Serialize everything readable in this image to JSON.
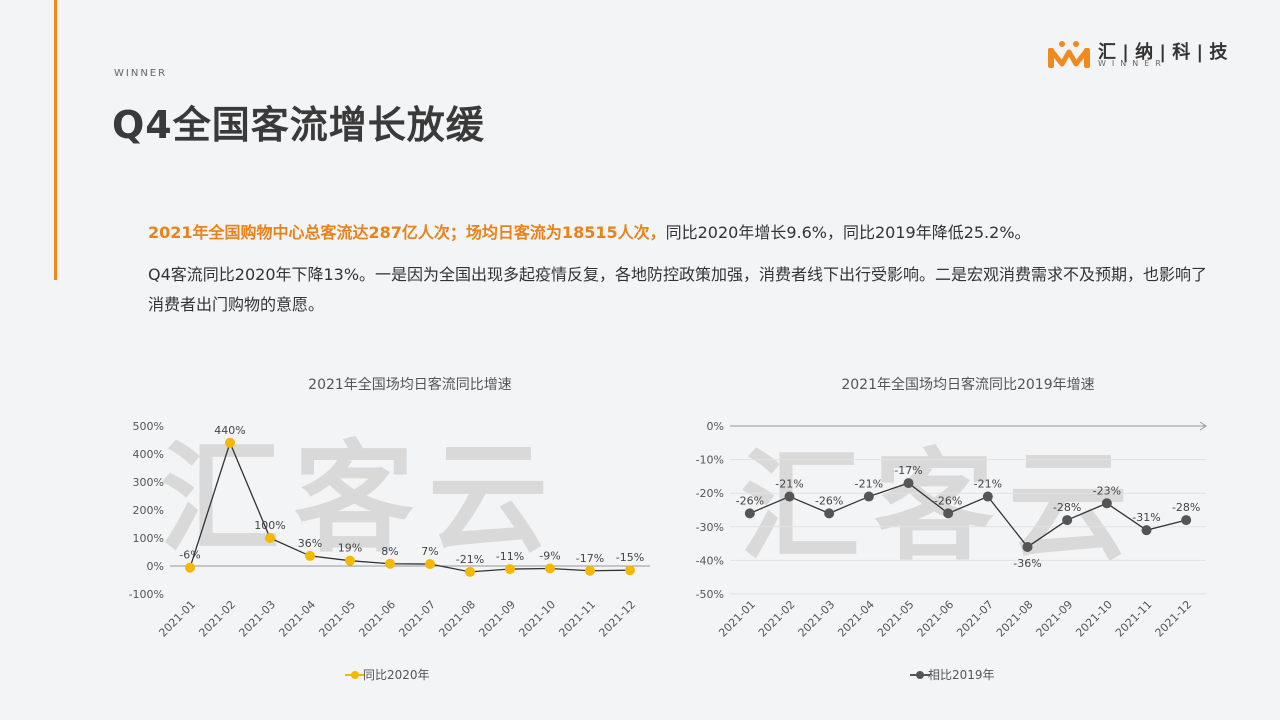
{
  "header": {
    "winner_tag": "WINNER",
    "title": "Q4全国客流增长放缓",
    "logo_text": "汇 | 纳 | 科 | 技",
    "logo_sub": "WINNER"
  },
  "body_text": {
    "p1_highlight": "2021年全国购物中心总客流达287亿人次；场均日客流为18515人次，",
    "p1_rest": "同比2020年增长9.6%，同比2019年降低25.2%。",
    "p2": "Q4客流同比2020年下降13%。一是因为全国出现多起疫情反复，各地防控政策加强，消费者线下出行受影响。二是宏观消费需求不及预期，也影响了消费者出门购物的意愿。"
  },
  "watermark": "汇客云",
  "colors": {
    "accent": "#f08a1f",
    "series1": "#f5b800",
    "series2": "#555555"
  },
  "chart_data": [
    {
      "type": "line",
      "title": "2021年全国场均日客流同比增速",
      "categories": [
        "2021-01",
        "2021-02",
        "2021-03",
        "2021-04",
        "2021-05",
        "2021-06",
        "2021-07",
        "2021-08",
        "2021-09",
        "2021-10",
        "2021-11",
        "2021-12"
      ],
      "series": [
        {
          "name": "同比2020年",
          "values": [
            -6,
            440,
            100,
            36,
            19,
            8,
            7,
            -21,
            -11,
            -9,
            -17,
            -15
          ]
        }
      ],
      "data_labels": [
        "-6%",
        "440%",
        "100%",
        "36%",
        "19%",
        "8%",
        "7%",
        "-21%",
        "-11%",
        "-9%",
        "-17%",
        "-15%"
      ],
      "yticks": [
        "500%",
        "400%",
        "300%",
        "200%",
        "100%",
        "0%",
        "-100%"
      ],
      "ylim": [
        -100,
        500
      ],
      "legend": "bottom"
    },
    {
      "type": "line",
      "title": "2021年全国场均日客流同比2019年增速",
      "categories": [
        "2021-01",
        "2021-02",
        "2021-03",
        "2021-04",
        "2021-05",
        "2021-06",
        "2021-07",
        "2021-08",
        "2021-09",
        "2021-10",
        "2021-11",
        "2021-12"
      ],
      "series": [
        {
          "name": "相比2019年",
          "values": [
            -26,
            -21,
            -26,
            -21,
            -17,
            -26,
            -21,
            -36,
            -28,
            -23,
            -31,
            -28
          ]
        }
      ],
      "data_labels": [
        "-26%",
        "-21%",
        "-26%",
        "-21%",
        "-17%",
        "-26%",
        "-21%",
        "-36%",
        "-28%",
        "-23%",
        "-31%",
        "-28%"
      ],
      "yticks": [
        "0%",
        "-10%",
        "-20%",
        "-30%",
        "-40%",
        "-50%"
      ],
      "ylim": [
        -50,
        0
      ],
      "legend": "bottom"
    }
  ]
}
